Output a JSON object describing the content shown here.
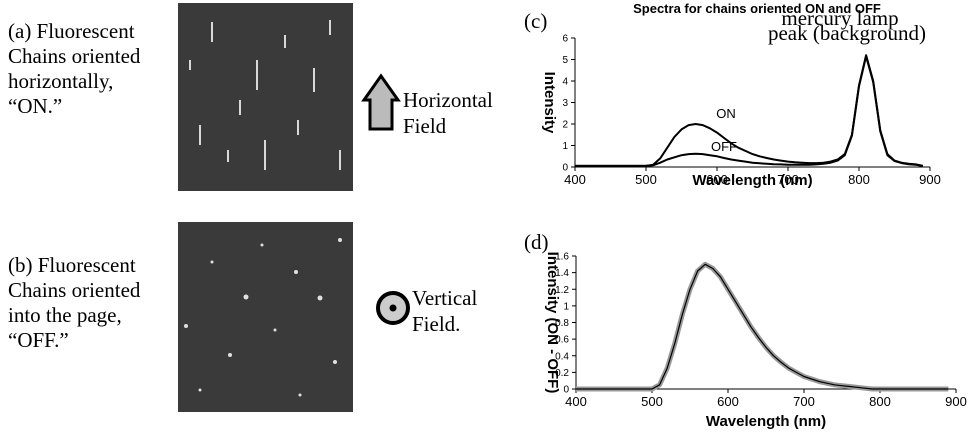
{
  "panels": [
    {
      "caption": [
        "(a) Fluorescent",
        "Chains oriented",
        "horizontally,",
        "“ON.”"
      ],
      "field": [
        "Horizontal",
        "Field"
      ]
    },
    {
      "caption": [
        "(b) Fluorescent",
        "Chains oriented",
        "into the page,",
        "“OFF.”"
      ],
      "field": [
        "Vertical",
        "Field."
      ]
    }
  ],
  "chart_data": [
    {
      "type": "line",
      "panel_label": "(c)",
      "title": "Spectra for chains oriented ON and OFF",
      "x_label": "Wavelength (nm)",
      "y_label": "Intensity",
      "annotations": [
        "mercury lamp",
        "peak (background)"
      ],
      "x": [
        400,
        410,
        420,
        430,
        440,
        450,
        460,
        470,
        480,
        490,
        500,
        510,
        520,
        530,
        540,
        550,
        560,
        570,
        580,
        590,
        600,
        610,
        620,
        630,
        640,
        650,
        660,
        670,
        680,
        690,
        700,
        710,
        720,
        730,
        740,
        750,
        760,
        770,
        780,
        790,
        800,
        810,
        820,
        830,
        840,
        850,
        860,
        870,
        880,
        890
      ],
      "series": [
        {
          "name": "ON",
          "color": "#000000",
          "values": [
            0.05,
            0.05,
            0.05,
            0.05,
            0.05,
            0.05,
            0.05,
            0.05,
            0.05,
            0.05,
            0.05,
            0.1,
            0.4,
            0.9,
            1.4,
            1.75,
            1.95,
            2.0,
            1.95,
            1.8,
            1.6,
            1.35,
            1.1,
            0.9,
            0.75,
            0.6,
            0.5,
            0.42,
            0.35,
            0.3,
            0.25,
            0.22,
            0.2,
            0.18,
            0.18,
            0.2,
            0.25,
            0.35,
            0.6,
            1.5,
            3.8,
            5.2,
            4.0,
            1.7,
            0.6,
            0.3,
            0.2,
            0.15,
            0.12,
            0.05
          ]
        },
        {
          "name": "OFF",
          "color": "#000000",
          "values": [
            0.05,
            0.05,
            0.05,
            0.05,
            0.05,
            0.05,
            0.05,
            0.05,
            0.05,
            0.05,
            0.05,
            0.08,
            0.2,
            0.35,
            0.45,
            0.55,
            0.6,
            0.62,
            0.6,
            0.55,
            0.5,
            0.42,
            0.35,
            0.3,
            0.25,
            0.2,
            0.17,
            0.15,
            0.13,
            0.12,
            0.1,
            0.1,
            0.1,
            0.1,
            0.12,
            0.15,
            0.2,
            0.3,
            0.55,
            1.45,
            3.75,
            5.15,
            3.95,
            1.65,
            0.55,
            0.28,
            0.18,
            0.13,
            0.1,
            0.05
          ]
        }
      ],
      "xlim": [
        400,
        900
      ],
      "xticks": [
        400,
        500,
        600,
        700,
        800,
        900
      ],
      "ylim": [
        0,
        6
      ],
      "yticks": [
        0,
        1,
        2,
        3,
        4,
        5,
        6
      ]
    },
    {
      "type": "line",
      "panel_label": "(d)",
      "x_label": "Wavelength (nm)",
      "y_label": "Intensity (ON - OFF)",
      "x": [
        400,
        410,
        420,
        430,
        440,
        450,
        460,
        470,
        480,
        490,
        500,
        510,
        520,
        530,
        540,
        550,
        560,
        570,
        580,
        590,
        600,
        610,
        620,
        630,
        640,
        650,
        660,
        670,
        680,
        690,
        700,
        710,
        720,
        730,
        740,
        750,
        760,
        770,
        780,
        790,
        800,
        810,
        820,
        830,
        840,
        850,
        860,
        870,
        880,
        890
      ],
      "series": [
        {
          "color": "#000000",
          "band_color": "#999999",
          "values": [
            0,
            0,
            0,
            0,
            0,
            0,
            0,
            0,
            0,
            0,
            0,
            0.05,
            0.25,
            0.55,
            0.9,
            1.2,
            1.42,
            1.5,
            1.45,
            1.35,
            1.2,
            1.05,
            0.9,
            0.75,
            0.62,
            0.5,
            0.4,
            0.32,
            0.25,
            0.2,
            0.15,
            0.12,
            0.09,
            0.07,
            0.05,
            0.04,
            0.03,
            0.02,
            0.01,
            0,
            0,
            0,
            0,
            0,
            0,
            0,
            0,
            0,
            0,
            0
          ]
        }
      ],
      "xlim": [
        400,
        900
      ],
      "xticks": [
        400,
        500,
        600,
        700,
        800,
        900
      ],
      "ylim": [
        0,
        1.6
      ],
      "yticks": [
        0,
        0.2,
        0.4,
        0.6,
        0.8,
        1,
        1.2,
        1.4,
        1.6
      ]
    }
  ]
}
